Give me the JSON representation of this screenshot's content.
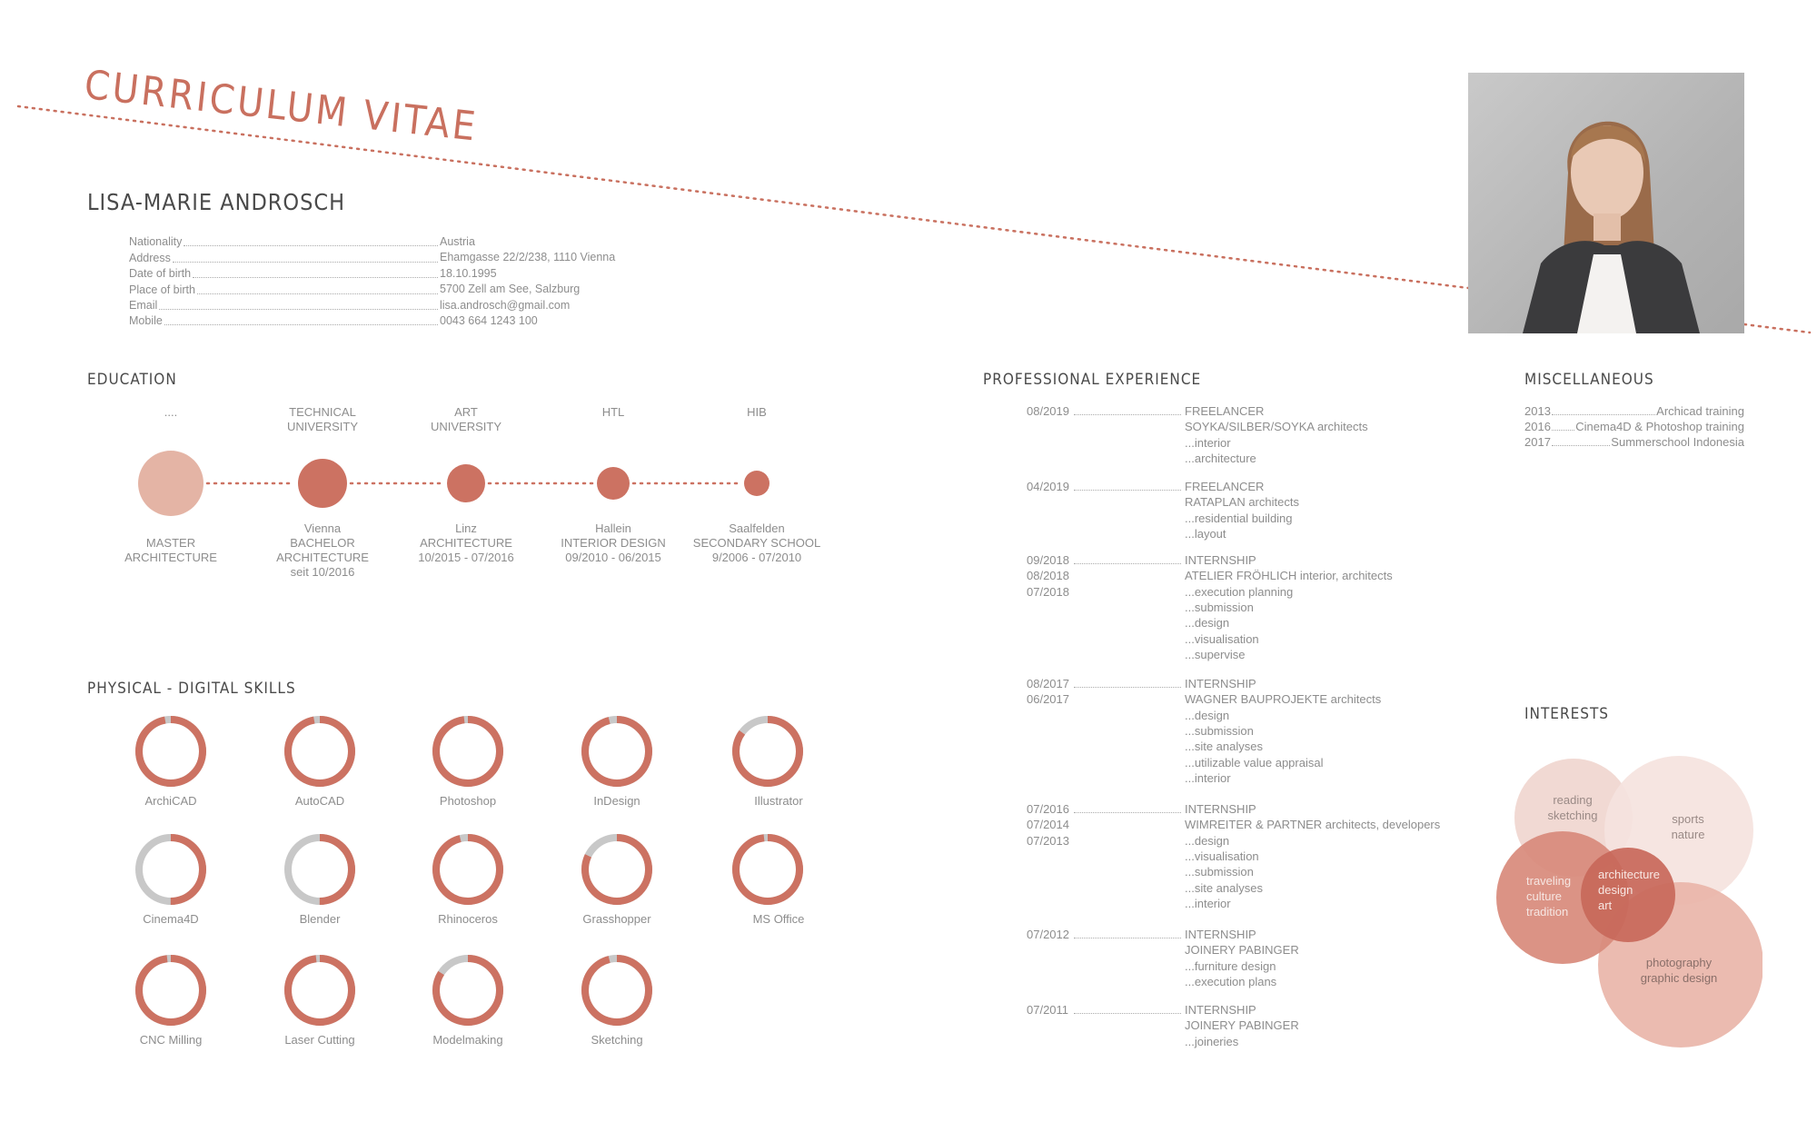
{
  "header": {
    "cv_title": "CURRICULUM VITAE",
    "name": "LISA-MARIE ANDROSCH"
  },
  "personal": [
    {
      "label": "Nationality",
      "value": "Austria"
    },
    {
      "label": "Address",
      "value": "Ehamgasse 22/2/238, 1110 Vienna"
    },
    {
      "label": "Date of birth",
      "value": "18.10.1995"
    },
    {
      "label": "Place of birth",
      "value": "5700 Zell am See, Salzburg"
    },
    {
      "label": "Email",
      "value": "lisa.androsch@gmail.com"
    },
    {
      "label": "Mobile",
      "value": "0043 664 1243 100"
    }
  ],
  "education": {
    "heading": "EDUCATION",
    "stages": [
      {
        "top": [
          "...."
        ],
        "bottom": [
          "MASTER",
          "ARCHITECTURE"
        ],
        "color": "#e4b4a5",
        "current": false
      },
      {
        "top": [
          "TECHNICAL",
          "UNIVERSITY"
        ],
        "bottom": [
          "Vienna",
          "BACHELOR",
          "ARCHITECTURE",
          "seit 10/2016"
        ],
        "color": "#cc7262",
        "current": true
      },
      {
        "top": [
          "ART",
          "UNIVERSITY"
        ],
        "bottom": [
          "Linz",
          "ARCHITECTURE",
          "10/2015 - 07/2016"
        ],
        "color": "#cc7262",
        "current": false
      },
      {
        "top": [
          "HTL"
        ],
        "bottom": [
          "Hallein",
          "INTERIOR DESIGN",
          "09/2010 - 06/2015"
        ],
        "color": "#cc7262",
        "current": false
      },
      {
        "top": [
          "HIB"
        ],
        "bottom": [
          "Saalfelden",
          "SECONDARY SCHOOL",
          "9/2006 - 07/2010"
        ],
        "color": "#cc7262",
        "current": false
      }
    ]
  },
  "skills": {
    "heading": "PHYSICAL - DIGITAL SKILLS",
    "accent": "#cc7262",
    "track": "#c8c8c8",
    "items": [
      {
        "name": "ArchiCAD",
        "level": 0.97
      },
      {
        "name": "AutoCAD",
        "level": 0.97
      },
      {
        "name": "Photoshop",
        "level": 0.98
      },
      {
        "name": "InDesign",
        "level": 0.96
      },
      {
        "name": "Illustrator",
        "level": 0.85
      },
      {
        "name": "Cinema4D",
        "level": 0.5
      },
      {
        "name": "Blender",
        "level": 0.5
      },
      {
        "name": "Rhinoceros",
        "level": 0.96
      },
      {
        "name": "Grasshopper",
        "level": 0.82
      },
      {
        "name": "MS Office",
        "level": 0.98
      },
      {
        "name": "CNC Milling",
        "level": 0.98
      },
      {
        "name": "Laser Cutting",
        "level": 0.98
      },
      {
        "name": "Modelmaking",
        "level": 0.84
      },
      {
        "name": "Sketching",
        "level": 0.96
      }
    ]
  },
  "experience": {
    "heading": "PROFESSIONAL EXPERIENCE",
    "entries": [
      {
        "dates": [
          "08/2019"
        ],
        "lines": [
          "FREELANCER",
          "SOYKA/SILBER/SOYKA architects",
          "...interior",
          "...architecture"
        ]
      },
      {
        "dates": [
          "04/2019"
        ],
        "lines": [
          "FREELANCER",
          "RATAPLAN architects",
          "...residential building",
          "...layout"
        ]
      },
      {
        "dates": [
          "09/2018",
          "08/2018",
          "07/2018"
        ],
        "lines": [
          "INTERNSHIP",
          "ATELIER FRÖHLICH interior, architects",
          "...execution planning",
          "...submission",
          "...design",
          "...visualisation",
          "...supervise"
        ]
      },
      {
        "dates": [
          "08/2017",
          "06/2017"
        ],
        "lines": [
          "INTERNSHIP",
          "WAGNER BAUPROJEKTE architects",
          "...design",
          "...submission",
          "...site analyses",
          "...utilizable value appraisal",
          "...interior"
        ]
      },
      {
        "dates": [
          "07/2016",
          "07/2014",
          "07/2013"
        ],
        "lines": [
          "INTERNSHIP",
          "WIMREITER & PARTNER architects, developers",
          "...design",
          "...visualisation",
          "...submission",
          "...site analyses",
          "...interior"
        ]
      },
      {
        "dates": [
          "07/2012"
        ],
        "lines": [
          "INTERNSHIP",
          "JOINERY PABINGER",
          "...furniture design",
          "...execution plans"
        ]
      },
      {
        "dates": [
          "07/2011"
        ],
        "lines": [
          "INTERNSHIP",
          "JOINERY PABINGER",
          "...joineries"
        ]
      }
    ]
  },
  "misc": {
    "heading": "MISCELLANEOUS",
    "items": [
      {
        "year": "2013",
        "text": "Archicad training"
      },
      {
        "year": "2016",
        "text": "Cinema4D & Photoshop training"
      },
      {
        "year": "2017",
        "text": "Summerschool Indonesia"
      }
    ]
  },
  "interests": {
    "heading": "INTERESTS",
    "bubbles": [
      {
        "lines": [
          "reading",
          "sketching"
        ],
        "color": "#f0d6cf"
      },
      {
        "lines": [
          "sports",
          "nature"
        ],
        "color": "#f5e3de"
      },
      {
        "lines": [
          "traveling",
          "culture",
          "tradition"
        ],
        "color": "#d88a7b"
      },
      {
        "lines": [
          "photography",
          "graphic design"
        ],
        "color": "#e9b5a9"
      },
      {
        "lines": [
          "architecture",
          "design",
          "art"
        ],
        "color": "#c8685a"
      }
    ]
  }
}
